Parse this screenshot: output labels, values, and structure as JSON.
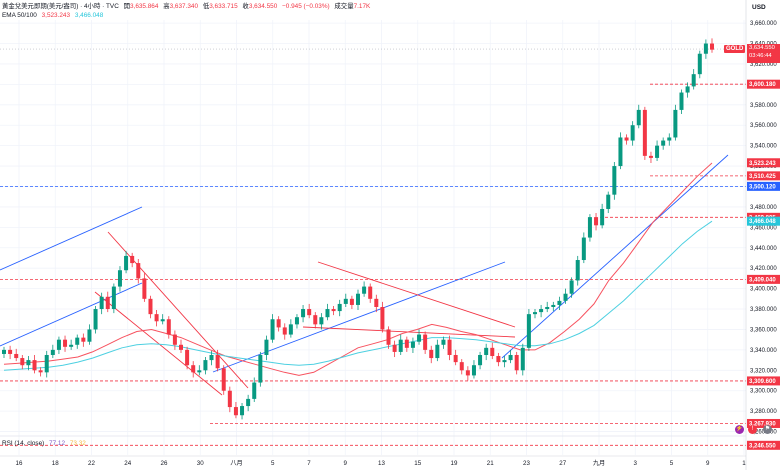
{
  "header": {
    "title": "黃金兌美元即期(美元/盎司) · 4小時 · TVC",
    "open_label": "開",
    "open": "3,635.864",
    "high_label": "高",
    "high": "3,637.340",
    "low_label": "低",
    "low": "3,633.715",
    "close_label": "收",
    "close": "3,634.550",
    "change": "−0.945 (−0.03%)",
    "volume_label": "成交量",
    "volume": "7.17K",
    "ema_label": "EMA 50/100",
    "ema50": "3,523.243",
    "ema100": "3,466.048"
  },
  "axis": {
    "currency": "USD"
  },
  "symbol_badge": "GOLD",
  "last_price": {
    "price": "3,634.550",
    "countdown": "03:46:44"
  },
  "price_labels": [
    {
      "value": "3,600.180",
      "color": "#f23645",
      "price": 3600.18
    },
    {
      "value": "3,523.243",
      "color": "#f23645",
      "price": 3523.243
    },
    {
      "value": "3,510.425",
      "color": "#f23645",
      "price": 3510.425
    },
    {
      "value": "3,500.120",
      "color": "#2962ff",
      "price": 3500.12
    },
    {
      "value": "3,469.805",
      "color": "#f23645",
      "price": 3469.805
    },
    {
      "value": "3,466.048",
      "color": "#26c6da",
      "price": 3466.048
    },
    {
      "value": "3,409.040",
      "color": "#f23645",
      "price": 3409.04
    },
    {
      "value": "3,309.600",
      "color": "#f23645",
      "price": 3309.6
    },
    {
      "value": "3,267.930",
      "color": "#f23645",
      "price": 3267.93
    },
    {
      "value": "3,246.550",
      "color": "#f23645",
      "price": 3246.55
    }
  ],
  "rsi": {
    "label": "RSI (14, close)",
    "value1": "77.12",
    "value2": "73.32"
  },
  "chart_data": {
    "type": "line",
    "title": "黃金兌美元即期(美元/盎司) · 4小時 · TVC",
    "ylabel": "USD",
    "ylim": [
      3240,
      3665
    ],
    "y_ticks": [
      "3,660.000",
      "3,640.000",
      "3,620.000",
      "3,600.000",
      "3,580.000",
      "3,560.000",
      "3,540.000",
      "3,520.000",
      "3,500.000",
      "3,480.000",
      "3,460.000",
      "3,440.000",
      "3,420.000",
      "3,400.000",
      "3,380.000",
      "3,360.000",
      "3,340.000",
      "3,320.000",
      "3,300.000",
      "3,280.000",
      "3,260.000"
    ],
    "y_tick_values": [
      3660,
      3640,
      3620,
      3600,
      3580,
      3560,
      3540,
      3520,
      3500,
      3480,
      3460,
      3440,
      3420,
      3400,
      3380,
      3360,
      3340,
      3320,
      3300,
      3280,
      3260
    ],
    "x_ticks": [
      "16",
      "18",
      "22",
      "24",
      "26",
      "30",
      "八月",
      "5",
      "7",
      "9",
      "13",
      "15",
      "19",
      "21",
      "23",
      "27",
      "九月",
      "3",
      "5",
      "9",
      "1"
    ],
    "grid": true,
    "series": [
      {
        "values": [
          3340,
          3336,
          3332,
          3325,
          3330,
          3320,
          3318,
          3335,
          3340,
          3350,
          3343,
          3345,
          3352,
          3348,
          3360,
          3380,
          3392,
          3380,
          3402,
          3418,
          3432,
          3425,
          3410,
          3390,
          3375,
          3368,
          3370,
          3355,
          3345,
          3340,
          3325,
          3318,
          3320,
          3330,
          3335,
          3322,
          3300,
          3284,
          3276,
          3285,
          3292,
          3308,
          3335,
          3350,
          3370,
          3362,
          3355,
          3365,
          3372,
          3380,
          3374,
          3365,
          3372,
          3380,
          3378,
          3385,
          3390,
          3384,
          3395,
          3402,
          3390,
          3382,
          3360,
          3345,
          3338,
          3350,
          3342,
          3348,
          3355,
          3340,
          3332,
          3345,
          3350,
          3335,
          3328,
          3320,
          3315,
          3325,
          3335,
          3342,
          3334,
          3328,
          3330,
          3335,
          3320,
          3342,
          3375,
          3377,
          3380,
          3382,
          3384,
          3388,
          3395,
          3408,
          3428,
          3450,
          3470,
          3462,
          3478,
          3492,
          3520,
          3548,
          3545,
          3560,
          3575,
          3530,
          3528,
          3540,
          3545,
          3548,
          3575,
          3592,
          3598,
          3610,
          3630,
          3640,
          3634
        ]
      },
      {
        "name": "EMA 50",
        "values": [
          3326,
          3327,
          3328,
          3329,
          3331,
          3333,
          3338,
          3345,
          3352,
          3358,
          3360,
          3356,
          3352,
          3346,
          3340,
          3334,
          3330,
          3326,
          3322,
          3318,
          3315,
          3318,
          3326,
          3334,
          3342,
          3346,
          3350,
          3356,
          3360,
          3365,
          3362,
          3358,
          3355,
          3350,
          3345,
          3340,
          3340,
          3347,
          3358,
          3370,
          3385,
          3408,
          3425,
          3445,
          3465,
          3480,
          3495,
          3510,
          3523
        ]
      },
      {
        "name": "EMA 100",
        "values": [
          3320,
          3321,
          3322,
          3323,
          3325,
          3328,
          3332,
          3337,
          3342,
          3345,
          3346,
          3345,
          3343,
          3340,
          3337,
          3334,
          3332,
          3330,
          3328,
          3326,
          3325,
          3326,
          3329,
          3333,
          3337,
          3340,
          3343,
          3346,
          3349,
          3352,
          3352,
          3351,
          3350,
          3348,
          3346,
          3344,
          3344,
          3346,
          3350,
          3356,
          3364,
          3376,
          3388,
          3402,
          3416,
          3430,
          3444,
          3456,
          3466
        ]
      }
    ]
  }
}
